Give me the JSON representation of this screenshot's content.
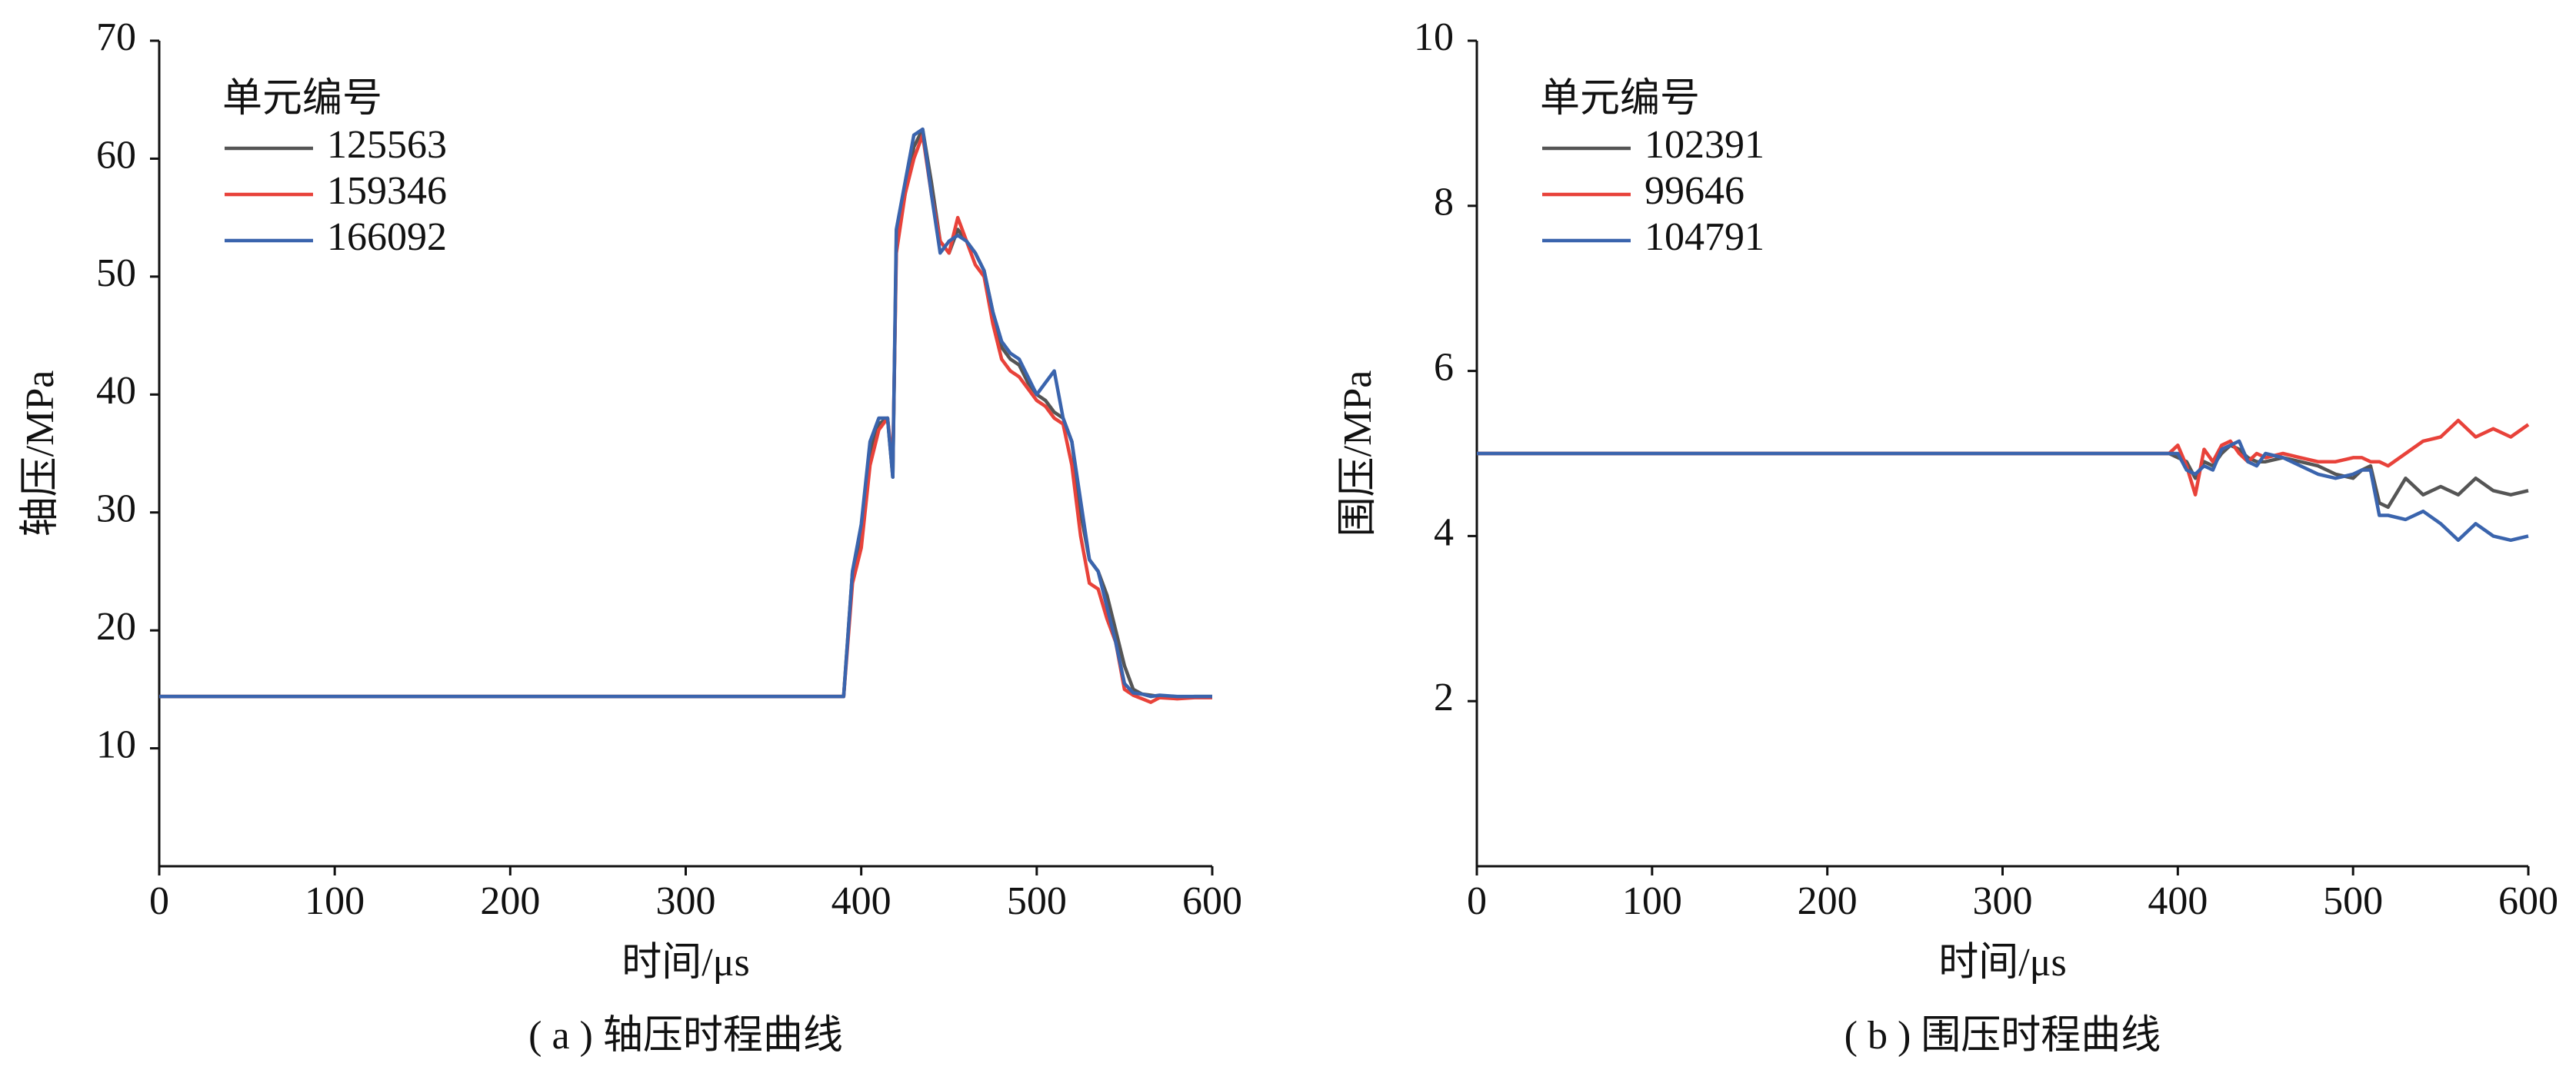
{
  "chart_data": [
    {
      "type": "line",
      "caption": "( a ) 轴压时程曲线",
      "xlabel": "时间/μs",
      "ylabel": "轴压/MPa",
      "legend_title": "单元编号",
      "x": [
        0,
        390,
        395,
        400,
        405,
        410,
        415,
        418,
        420,
        425,
        430,
        435,
        440,
        445,
        450,
        455,
        460,
        465,
        470,
        475,
        480,
        485,
        490,
        495,
        500,
        505,
        510,
        515,
        520,
        525,
        530,
        535,
        540,
        545,
        550,
        555,
        560,
        565,
        570,
        580,
        590,
        600
      ],
      "series": [
        {
          "name": "125563",
          "color": "#555555",
          "values": [
            14.4,
            14.4,
            25,
            28,
            35,
            37.5,
            38,
            33,
            53,
            57,
            61,
            62.5,
            58,
            53,
            52,
            54,
            53,
            52,
            50.5,
            47,
            44,
            43,
            42.5,
            41,
            40,
            39.5,
            38.5,
            38,
            36,
            30,
            26,
            25,
            23,
            20,
            17,
            15,
            14.6,
            14.5,
            14.4,
            14.3,
            14.4,
            14.4
          ]
        },
        {
          "name": "159346",
          "color": "#e8423a",
          "values": [
            14.4,
            14.4,
            24,
            27,
            34,
            37,
            38,
            34,
            52,
            57,
            60,
            62,
            57,
            53,
            52,
            55,
            53,
            51,
            50,
            46,
            43,
            42,
            41.5,
            40.5,
            39.5,
            39,
            38,
            37.5,
            34,
            28,
            24,
            23.5,
            21,
            19,
            15,
            14.5,
            14.2,
            13.9,
            14.3,
            14.2,
            14.3,
            14.3
          ]
        },
        {
          "name": "166092",
          "color": "#3a64ad",
          "values": [
            14.4,
            14.4,
            25,
            29,
            36,
            38,
            38,
            33,
            54,
            58,
            62,
            62.5,
            57,
            52,
            53,
            53.5,
            53,
            52,
            50.5,
            47,
            44.5,
            43.5,
            43,
            41.5,
            40,
            41,
            42,
            38,
            36,
            31,
            26,
            25,
            22,
            19,
            15.5,
            14.7,
            14.6,
            14.4,
            14.5,
            14.4,
            14.4,
            14.4
          ]
        }
      ],
      "xlim": [
        0,
        600
      ],
      "xticks": [
        0,
        100,
        200,
        300,
        400,
        500,
        600
      ],
      "ylim": [
        0,
        70
      ],
      "yticks": [
        10,
        20,
        30,
        40,
        50,
        60,
        70
      ]
    },
    {
      "type": "line",
      "caption": "( b ) 围压时程曲线",
      "xlabel": "时间/μs",
      "ylabel": "围压/MPa",
      "legend_title": "单元编号",
      "x": [
        0,
        50,
        100,
        200,
        300,
        395,
        400,
        405,
        410,
        415,
        420,
        425,
        430,
        435,
        440,
        445,
        450,
        460,
        470,
        480,
        490,
        500,
        505,
        510,
        515,
        520,
        530,
        540,
        550,
        560,
        570,
        580,
        590,
        600
      ],
      "series": [
        {
          "name": "102391",
          "color": "#555555",
          "values": [
            5,
            5,
            5,
            5,
            5,
            5,
            4.95,
            4.9,
            4.7,
            4.9,
            4.85,
            5,
            5.1,
            5.05,
            4.95,
            4.9,
            4.9,
            4.95,
            4.9,
            4.85,
            4.75,
            4.7,
            4.8,
            4.85,
            4.4,
            4.35,
            4.7,
            4.5,
            4.6,
            4.5,
            4.7,
            4.55,
            4.5,
            4.55
          ]
        },
        {
          "name": "99646",
          "color": "#e8423a",
          "values": [
            5,
            5,
            5,
            5,
            5,
            5,
            5.1,
            4.85,
            4.5,
            5.05,
            4.9,
            5.1,
            5.15,
            5.0,
            4.9,
            5.0,
            4.95,
            5.0,
            4.95,
            4.9,
            4.9,
            4.95,
            4.95,
            4.9,
            4.9,
            4.85,
            5.0,
            5.15,
            5.2,
            5.4,
            5.2,
            5.3,
            5.2,
            5.35
          ]
        },
        {
          "name": "104791",
          "color": "#3a64ad",
          "values": [
            5,
            5,
            5,
            5,
            5,
            5,
            5.0,
            4.8,
            4.75,
            4.85,
            4.8,
            5.05,
            5.1,
            5.15,
            4.9,
            4.85,
            5.0,
            4.95,
            4.85,
            4.75,
            4.7,
            4.75,
            4.8,
            4.8,
            4.25,
            4.25,
            4.2,
            4.3,
            4.15,
            3.95,
            4.15,
            4.0,
            3.95,
            4.0
          ]
        }
      ],
      "xlim": [
        0,
        600
      ],
      "xticks": [
        0,
        100,
        200,
        300,
        400,
        500,
        600
      ],
      "ylim": [
        0,
        10
      ],
      "yticks": [
        2,
        4,
        6,
        8,
        10
      ]
    }
  ]
}
